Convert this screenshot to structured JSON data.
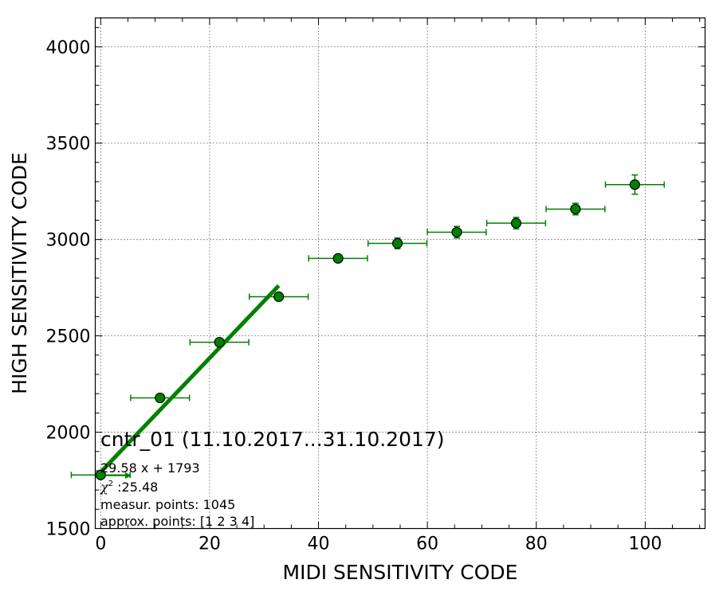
{
  "chart_data": {
    "type": "scatter",
    "xlabel": "MIDI SENSITIVITY CODE",
    "ylabel": "HIGH SENSITIVITY CODE",
    "xlim": [
      -1,
      111
    ],
    "ylim": [
      1500,
      4150
    ],
    "xticks": [
      0,
      20,
      40,
      60,
      80,
      100
    ],
    "yticks": [
      1500,
      2000,
      2500,
      3000,
      3500,
      4000
    ],
    "grid": true,
    "marker_color": "#008000",
    "line_color": "#008000",
    "points": [
      {
        "x": 0.0,
        "y": 1778,
        "xerr": 5.4,
        "yerr": 10
      },
      {
        "x": 10.9,
        "y": 2178,
        "xerr": 5.4,
        "yerr": 10
      },
      {
        "x": 21.8,
        "y": 2467,
        "xerr": 5.4,
        "yerr": 10
      },
      {
        "x": 32.7,
        "y": 2703,
        "xerr": 5.4,
        "yerr": 10
      },
      {
        "x": 43.6,
        "y": 2902,
        "xerr": 5.4,
        "yerr": 12
      },
      {
        "x": 54.5,
        "y": 2980,
        "xerr": 5.4,
        "yerr": 28
      },
      {
        "x": 65.4,
        "y": 3038,
        "xerr": 5.4,
        "yerr": 30
      },
      {
        "x": 76.3,
        "y": 3085,
        "xerr": 5.4,
        "yerr": 30
      },
      {
        "x": 87.2,
        "y": 3158,
        "xerr": 5.4,
        "yerr": 30
      },
      {
        "x": 98.1,
        "y": 3285,
        "xerr": 5.4,
        "yerr": 50
      }
    ],
    "fit": {
      "slope": 29.58,
      "intercept": 1793,
      "x_range": [
        0,
        32.7
      ]
    },
    "annotation": {
      "title": "cntr_01 (11.10.2017...31.10.2017)",
      "equation": "29.58 x + 1793",
      "chi_symbol": "χ",
      "chi_power": "2",
      "chi_value": " :25.48",
      "measur_points": "measur. points: 1045",
      "approx_points": "approx. points: [1 2 3 4]"
    }
  }
}
